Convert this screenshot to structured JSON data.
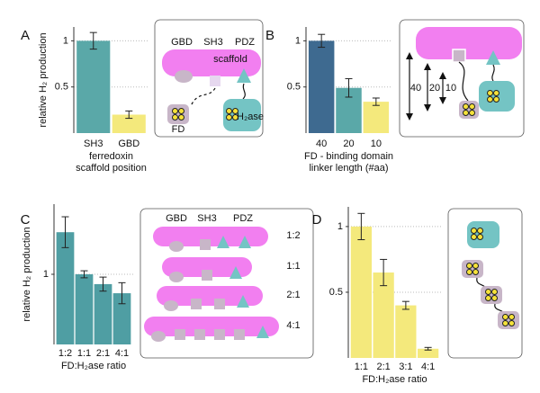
{
  "chart_data": [
    {
      "panel": "A",
      "type": "bar",
      "categories": [
        "SH3",
        "GBD"
      ],
      "values": [
        1.0,
        0.2
      ],
      "errors": [
        0.09,
        0.04
      ],
      "colors": [
        "#5aa8a8",
        "#f4e97c"
      ],
      "ylabel": "relative H₂ production",
      "xlabel": [
        "ferredoxin",
        "scaffold position"
      ],
      "ylim": [
        0,
        1.15
      ],
      "yticks": [
        0.5,
        1
      ],
      "grid": true,
      "diagram_labels": [
        "GBD",
        "SH3",
        "PDZ",
        "scaffold",
        "FD",
        "H₂ase"
      ]
    },
    {
      "panel": "B",
      "type": "bar",
      "categories": [
        "40",
        "20",
        "10"
      ],
      "values": [
        1.0,
        0.49,
        0.34
      ],
      "errors": [
        0.07,
        0.1,
        0.04
      ],
      "colors": [
        "#3e6a90",
        "#5aa8a8",
        "#f4e97c"
      ],
      "xlabel": [
        "FD - binding domain",
        "linker length (#aa)"
      ],
      "ylim": [
        0,
        1.15
      ],
      "yticks": [
        0.5,
        1
      ],
      "grid": true,
      "diagram_labels": [
        "40",
        "20",
        "10"
      ]
    },
    {
      "panel": "C",
      "type": "bar",
      "categories": [
        "1:2",
        "1:1",
        "2:1",
        "4:1"
      ],
      "values": [
        1.6,
        1.0,
        0.86,
        0.73
      ],
      "errors": [
        0.22,
        0.05,
        0.1,
        0.15
      ],
      "color": "#4f9ea3",
      "ylabel": "relative H₂ production",
      "xlabel": [
        "FD:H₂ase ratio"
      ],
      "ylim": [
        0,
        2
      ],
      "yticks": [
        1
      ],
      "grid": true,
      "diagram_labels": [
        "GBD",
        "SH3",
        "PDZ",
        "1:2",
        "1:1",
        "2:1",
        "4:1"
      ]
    },
    {
      "panel": "D",
      "type": "bar",
      "categories": [
        "1:1",
        "2:1",
        "3:1",
        "4:1"
      ],
      "values": [
        1.0,
        0.65,
        0.4,
        0.07
      ],
      "errors": [
        0.1,
        0.1,
        0.03,
        0.01
      ],
      "color": "#f4e97c",
      "xlabel": [
        "FD:H₂ase ratio"
      ],
      "ylim": [
        0,
        1.15
      ],
      "yticks": [
        0.5,
        1
      ],
      "grid": true
    }
  ]
}
